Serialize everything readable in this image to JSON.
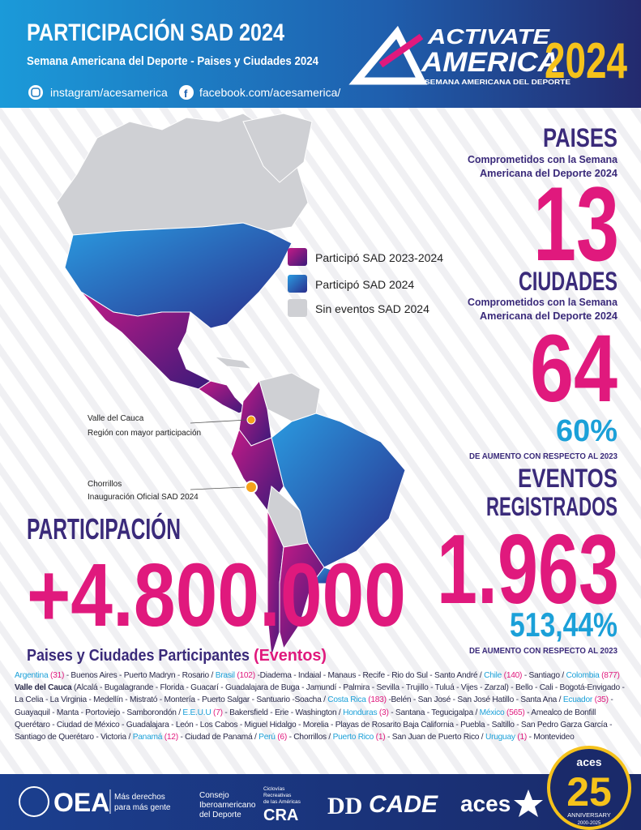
{
  "header": {
    "title": "PARTICIPACIÓN SAD 2024",
    "subtitle": "Semana Americana del Deporte - Paises y Ciudades 2024",
    "instagram": "instagram/acesamerica",
    "facebook": "facebook.com/acesamerica/",
    "logo": {
      "line1": "ACTIVATE",
      "line2": "AMERICA",
      "year": "2024",
      "tagline": "SEMANA AMERICANA DEL DEPORTE"
    }
  },
  "legend": [
    "Participó SAD 2023-2024",
    "Participó SAD 2024",
    "Sin eventos SAD 2024"
  ],
  "annotations": [
    {
      "title": "Valle del Cauca",
      "text": "Región con mayor participación"
    },
    {
      "title": "Chorrillos",
      "text": "Inauguración Oficial SAD 2024"
    }
  ],
  "stats": {
    "paises": {
      "title": "PAISES",
      "desc1": "Comprometidos con la Semana",
      "desc2": "Americana del Deporte 2024",
      "value": "13"
    },
    "ciudades": {
      "title": "CIUDADES",
      "desc1": "Comprometidos con la Semana",
      "desc2": "Americana del Deporte 2024",
      "value": "64",
      "increase": "60%",
      "note": "DE AUMENTO CON RESPECTO AL 2023"
    },
    "eventos": {
      "title1": "EVENTOS",
      "title2": "REGISTRADOS",
      "value": "1.963",
      "increase": "513,44%",
      "note": "DE AUMENTO CON RESPECTO AL 2023"
    }
  },
  "participation": {
    "title": "PARTICIPACIÓN",
    "value": "+4.800.000"
  },
  "participants": {
    "heading": "Paises y Ciudades Participantes",
    "heading_em": "(Eventos)",
    "entries": [
      {
        "country": "Argentina",
        "count": "(31)",
        "cities": "- Buenos Aires - Puerto Madryn - Rosario /"
      },
      {
        "country": "Brasil",
        "count": "(102)",
        "cities": "-Diadema - Indaial - Manaus - Recife - Rio do Sul - Santo André /"
      },
      {
        "country": "Chile",
        "count": "(140)",
        "cities": "- Santiago /"
      },
      {
        "country": "Colombia",
        "count": "(877)",
        "region": "Valle del Cauca",
        "cities": "(Alcalá - Bugalagrande - Florida - Guacarí - Guadalajara de Buga - Jamundí - Palmira - Sevilla - Trujillo - Tuluá - Vijes - Zarzal) - Bello - Cali - Bogotá-Envigado -La Celia - La Virginia - Medellín - Mistrató - Montería - Puerto Salgar - Santuario -Soacha /"
      },
      {
        "country": "Costa Rica",
        "count": "(183)",
        "cities": "-Belén - San José - San José Hatillo - Santa Ana /"
      },
      {
        "country": "Ecuador",
        "count": "(35)",
        "cities": "- Guayaquil - Manta - Portoviejo - Samborondón /"
      },
      {
        "country": "E.E.U.U",
        "count": "(7)",
        "cities": "- Bakersfield - Erie - Washington /"
      },
      {
        "country": "Honduras",
        "count": "(3)",
        "cities": "- Santana - Tegucigalpa /"
      },
      {
        "country": "México",
        "count": "(565)",
        "cities": "- Amealco de Bonfill Querétaro - Ciudad de México - Guadalajara - León - Los Cabos - Miguel Hidalgo - Morelia - Playas de Rosarito Baja California - Puebla - Saltillo - San Pedro Garza García - Santiago de Querétaro - Victoria /"
      },
      {
        "country": "Panamá",
        "count": "(12)",
        "cities": "- Ciudad de Panamá /"
      },
      {
        "country": "Perú",
        "count": "(6)",
        "cities": "- Chorrillos /"
      },
      {
        "country": "Puerto Rico",
        "count": "(1)",
        "cities": "- San Juan de Puerto Rico /"
      },
      {
        "country": "Uruguay",
        "count": "(1)",
        "cities": "- Montevideo"
      }
    ]
  },
  "footer": {
    "oea": "OEA",
    "oea_tag1": "Más derechos",
    "oea_tag2": "para más gente",
    "cid1": "Consejo",
    "cid2": "Iberoamericano",
    "cid3": "del Deporte",
    "cra1": "Ciclovías",
    "cra2": "Recreativas",
    "cra3": "de las Américas",
    "cra": "CRA",
    "cade": "CADE",
    "aces": "aces",
    "badge_top": "aces",
    "badge_num": "25",
    "badge_text": "ANNIVERSARY",
    "badge_years": "2000-2025"
  }
}
